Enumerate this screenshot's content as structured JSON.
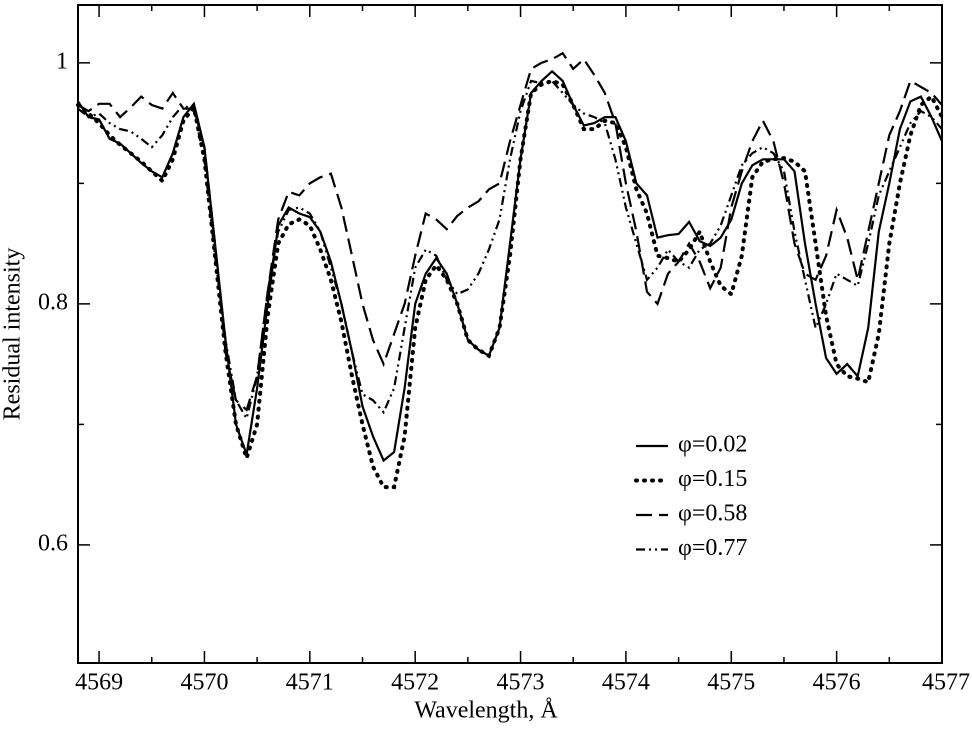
{
  "chart_data": {
    "type": "line",
    "xlabel": "Wavelength, Å",
    "ylabel": "Residual intensity",
    "xlim": [
      4568.8,
      4577
    ],
    "ylim": [
      0.502,
      1.048
    ],
    "xticks": [
      4569,
      4570,
      4571,
      4572,
      4573,
      4574,
      4575,
      4576,
      4577
    ],
    "xminorticks": [
      4569.5,
      4570.5,
      4571.5,
      4572.5,
      4573.5,
      4574.5,
      4575.5,
      4576.5
    ],
    "yticks": [
      0.6,
      0.8,
      1
    ],
    "yminorticks": [
      0.7,
      0.9
    ],
    "x": [
      4568.8,
      4568.9,
      4569.0,
      4569.1,
      4569.2,
      4569.3,
      4569.4,
      4569.5,
      4569.6,
      4569.7,
      4569.8,
      4569.9,
      4570.0,
      4570.1,
      4570.2,
      4570.3,
      4570.4,
      4570.5,
      4570.6,
      4570.7,
      4570.8,
      4570.9,
      4571.0,
      4571.1,
      4571.2,
      4571.3,
      4571.4,
      4571.5,
      4571.6,
      4571.7,
      4571.8,
      4571.9,
      4572.0,
      4572.1,
      4572.2,
      4572.3,
      4572.4,
      4572.5,
      4572.6,
      4572.7,
      4572.8,
      4572.9,
      4573.0,
      4573.1,
      4573.2,
      4573.3,
      4573.4,
      4573.5,
      4573.6,
      4573.7,
      4573.8,
      4573.9,
      4574.0,
      4574.1,
      4574.2,
      4574.3,
      4574.4,
      4574.5,
      4574.6,
      4574.7,
      4574.8,
      4574.9,
      4575.0,
      4575.1,
      4575.2,
      4575.3,
      4575.4,
      4575.5,
      4575.6,
      4575.7,
      4575.8,
      4575.9,
      4576.0,
      4576.1,
      4576.2,
      4576.3,
      4576.4,
      4576.5,
      4576.6,
      4576.7,
      4576.8,
      4576.9,
      4577.0
    ],
    "series": [
      {
        "name": "φ=0.02",
        "color": "#000000",
        "dash": "solid",
        "values": [
          0.968,
          0.955,
          0.953,
          0.937,
          0.933,
          0.925,
          0.917,
          0.91,
          0.905,
          0.925,
          0.955,
          0.966,
          0.93,
          0.85,
          0.77,
          0.7,
          0.675,
          0.73,
          0.8,
          0.865,
          0.88,
          0.875,
          0.872,
          0.86,
          0.835,
          0.8,
          0.76,
          0.715,
          0.69,
          0.67,
          0.677,
          0.73,
          0.8,
          0.825,
          0.838,
          0.825,
          0.8,
          0.77,
          0.762,
          0.757,
          0.78,
          0.85,
          0.92,
          0.975,
          0.985,
          0.993,
          0.985,
          0.965,
          0.948,
          0.95,
          0.955,
          0.955,
          0.935,
          0.9,
          0.89,
          0.855,
          0.857,
          0.858,
          0.868,
          0.852,
          0.848,
          0.855,
          0.87,
          0.9,
          0.915,
          0.92,
          0.92,
          0.92,
          0.91,
          0.85,
          0.8,
          0.755,
          0.742,
          0.75,
          0.74,
          0.78,
          0.86,
          0.9,
          0.945,
          0.968,
          0.972,
          0.955,
          0.935
        ]
      },
      {
        "name": "φ=0.15",
        "color": "#000000",
        "dash": "dotted",
        "values": [
          0.965,
          0.958,
          0.95,
          0.94,
          0.932,
          0.925,
          0.918,
          0.91,
          0.902,
          0.92,
          0.952,
          0.963,
          0.92,
          0.84,
          0.76,
          0.7,
          0.672,
          0.7,
          0.79,
          0.85,
          0.866,
          0.87,
          0.865,
          0.845,
          0.82,
          0.785,
          0.74,
          0.7,
          0.665,
          0.648,
          0.648,
          0.69,
          0.78,
          0.82,
          0.832,
          0.82,
          0.8,
          0.77,
          0.762,
          0.757,
          0.78,
          0.84,
          0.92,
          0.975,
          0.982,
          0.985,
          0.982,
          0.965,
          0.945,
          0.945,
          0.952,
          0.95,
          0.93,
          0.895,
          0.875,
          0.84,
          0.838,
          0.835,
          0.845,
          0.86,
          0.835,
          0.815,
          0.808,
          0.84,
          0.905,
          0.918,
          0.92,
          0.921,
          0.918,
          0.91,
          0.85,
          0.79,
          0.75,
          0.74,
          0.738,
          0.735,
          0.775,
          0.85,
          0.9,
          0.94,
          0.965,
          0.972,
          0.955
        ]
      },
      {
        "name": "φ=0.58",
        "color": "#000000",
        "dash": "dashed",
        "values": [
          0.965,
          0.96,
          0.966,
          0.966,
          0.955,
          0.963,
          0.972,
          0.965,
          0.962,
          0.975,
          0.962,
          0.962,
          0.93,
          0.85,
          0.76,
          0.72,
          0.712,
          0.74,
          0.81,
          0.87,
          0.893,
          0.89,
          0.9,
          0.905,
          0.908,
          0.88,
          0.84,
          0.8,
          0.77,
          0.75,
          0.775,
          0.8,
          0.84,
          0.875,
          0.87,
          0.862,
          0.873,
          0.88,
          0.885,
          0.895,
          0.9,
          0.935,
          0.965,
          0.995,
          1.0,
          1.003,
          1.008,
          0.995,
          1.003,
          0.99,
          0.975,
          0.95,
          0.9,
          0.86,
          0.81,
          0.8,
          0.825,
          0.835,
          0.85,
          0.835,
          0.813,
          0.83,
          0.88,
          0.91,
          0.935,
          0.952,
          0.935,
          0.9,
          0.85,
          0.825,
          0.82,
          0.84,
          0.878,
          0.855,
          0.82,
          0.86,
          0.9,
          0.94,
          0.96,
          0.985,
          0.98,
          0.975,
          0.965
        ]
      },
      {
        "name": "φ=0.77",
        "color": "#000000",
        "dash": "dashdot",
        "values": [
          0.962,
          0.955,
          0.958,
          0.95,
          0.945,
          0.943,
          0.937,
          0.93,
          0.94,
          0.955,
          0.965,
          0.96,
          0.92,
          0.84,
          0.77,
          0.72,
          0.705,
          0.74,
          0.81,
          0.86,
          0.878,
          0.88,
          0.875,
          0.86,
          0.83,
          0.8,
          0.76,
          0.725,
          0.72,
          0.71,
          0.73,
          0.78,
          0.83,
          0.845,
          0.84,
          0.82,
          0.808,
          0.812,
          0.825,
          0.845,
          0.87,
          0.92,
          0.96,
          0.985,
          0.983,
          0.985,
          0.975,
          0.965,
          0.958,
          0.955,
          0.95,
          0.92,
          0.88,
          0.85,
          0.82,
          0.83,
          0.845,
          0.835,
          0.83,
          0.845,
          0.85,
          0.865,
          0.89,
          0.915,
          0.925,
          0.93,
          0.925,
          0.91,
          0.86,
          0.82,
          0.78,
          0.8,
          0.825,
          0.82,
          0.815,
          0.85,
          0.89,
          0.91,
          0.93,
          0.95,
          0.96,
          0.955,
          0.945
        ]
      }
    ]
  }
}
